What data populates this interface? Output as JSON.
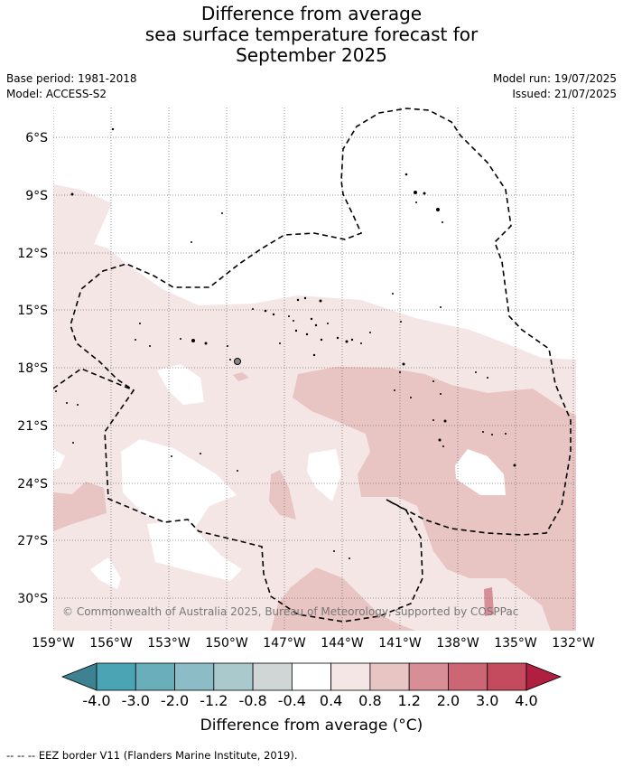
{
  "title": {
    "line1": "Difference from average",
    "line2": "sea surface temperature forecast for",
    "line3": "September 2025"
  },
  "meta": {
    "base_period": "Base period: 1981-2018",
    "model": "Model: ACCESS-S2",
    "model_run": "Model run: 19/07/2025",
    "issued": "Issued: 21/07/2025"
  },
  "map": {
    "lat_labels": [
      "6°S",
      "9°S",
      "12°S",
      "15°S",
      "18°S",
      "21°S",
      "24°S",
      "27°S",
      "30°S"
    ],
    "lon_labels": [
      "159°W",
      "156°W",
      "153°W",
      "150°W",
      "147°W",
      "144°W",
      "141°W",
      "138°W",
      "135°W",
      "132°W"
    ],
    "copyright": "© Commonwealth of Australia 2025, Bureau of Meteorology, supported by COSPPac"
  },
  "colorbar": {
    "ticks": [
      "-4.0",
      "-3.0",
      "-2.0",
      "-1.2",
      "-0.8",
      "-0.4",
      "0.4",
      "0.8",
      "1.2",
      "2.0",
      "3.0",
      "4.0"
    ],
    "colors": [
      "#3e8291",
      "#4aa4b4",
      "#6aaebb",
      "#8cbcc6",
      "#aac9cd",
      "#d0d5d6",
      "#ffffff",
      "#f5e6e6",
      "#e8c4c2",
      "#d88e96",
      "#cc6574",
      "#c44b5d",
      "#b01f3f"
    ],
    "label": "Difference from average (°C)"
  },
  "footer": "-- -- -- EEZ border V11 (Flanders Marine Institute, 2019)."
}
